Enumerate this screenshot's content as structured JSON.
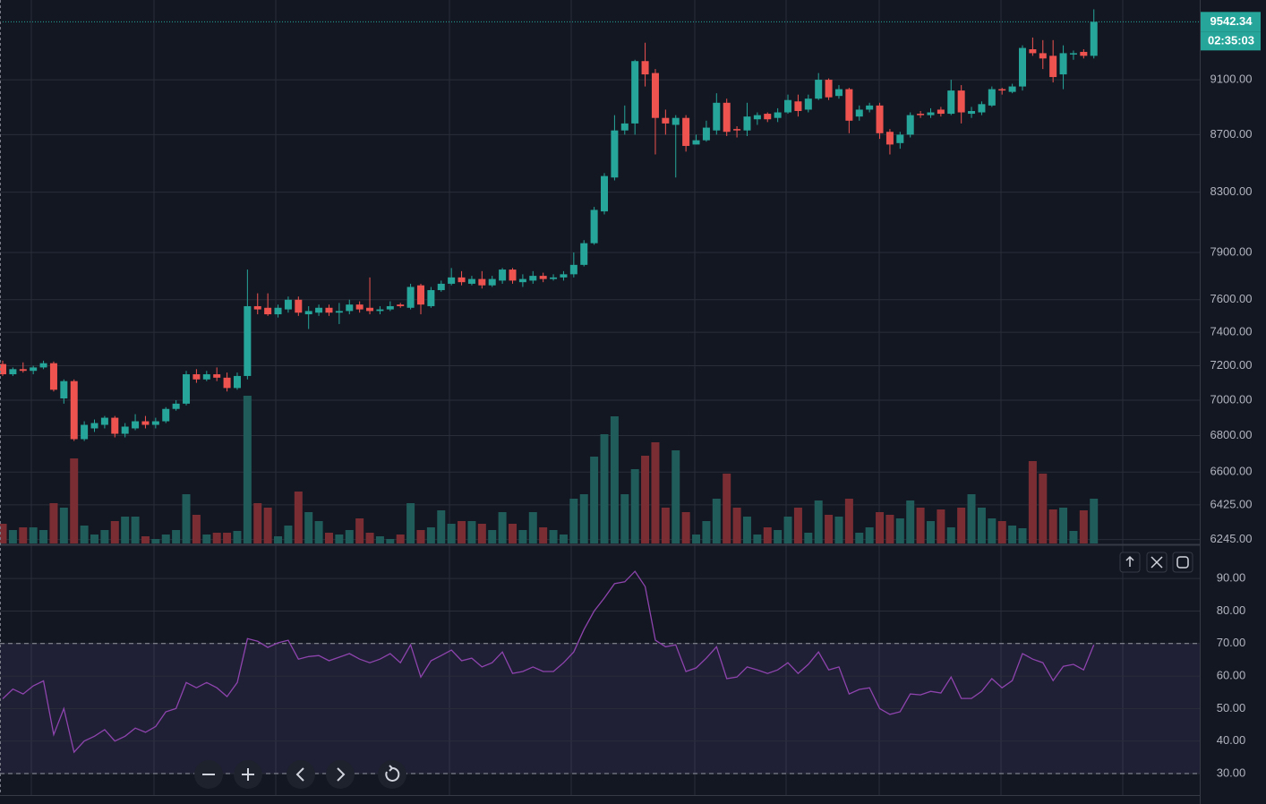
{
  "chart_data": [
    {
      "type": "candlestick",
      "log_scale": true,
      "grid": true,
      "up_color": "#26a69a",
      "down_color": "#ef5350",
      "volume_up_color": "#1f5c5a",
      "volume_down_color": "#7a2e33",
      "ylim": [
        6225,
        9714
      ],
      "yticks": [
        {
          "value": 6245,
          "label": "6245.00"
        },
        {
          "value": 6425,
          "label": "6425.00"
        },
        {
          "value": 6600,
          "label": "6600.00"
        },
        {
          "value": 6800,
          "label": "6800.00"
        },
        {
          "value": 7000,
          "label": "7000.00"
        },
        {
          "value": 7200,
          "label": "7200.00"
        },
        {
          "value": 7400,
          "label": "7400.00"
        },
        {
          "value": 7600,
          "label": "7600.00"
        },
        {
          "value": 7900,
          "label": "7900.00"
        },
        {
          "value": 8300,
          "label": "8300.00"
        },
        {
          "value": 8700,
          "label": "8700.00"
        },
        {
          "value": 9100,
          "label": "9100.00"
        }
      ],
      "last_price": 9542.34,
      "countdown": "02:35:03",
      "open": [
        7210,
        7150,
        7180,
        7170,
        7190,
        7215,
        7010,
        7110,
        6780,
        6840,
        6860,
        6900,
        6810,
        6840,
        6880,
        6860,
        6880,
        6950,
        6980,
        7150,
        7120,
        7150,
        7130,
        7070,
        7140,
        7560,
        7550,
        7510,
        7540,
        7600,
        7510,
        7520,
        7550,
        7520,
        7530,
        7570,
        7550,
        7530,
        7540,
        7570,
        7550,
        7690,
        7560,
        7660,
        7700,
        7740,
        7700,
        7730,
        7690,
        7720,
        7790,
        7710,
        7720,
        7750,
        7730,
        7740,
        7760,
        7820,
        7960,
        8170,
        8400,
        8730,
        8780,
        9240,
        9150,
        8820,
        8770,
        8820,
        8630,
        8660,
        8730,
        8930,
        8740,
        8730,
        8810,
        8850,
        8820,
        8860,
        8940,
        8880,
        8960,
        9100,
        8980,
        9030,
        8830,
        8880,
        8910,
        8720,
        8640,
        8700,
        8850,
        8840,
        8880,
        8850,
        9020,
        8850,
        8860,
        8910,
        9030,
        9010,
        9050,
        9330,
        9300,
        9280,
        9140,
        9290,
        9310,
        9280
      ],
      "high": [
        7230,
        7190,
        7220,
        7200,
        7230,
        7225,
        7120,
        7120,
        6880,
        6890,
        6910,
        6910,
        6870,
        6920,
        6910,
        6900,
        6960,
        7000,
        7170,
        7180,
        7170,
        7190,
        7160,
        7160,
        7790,
        7640,
        7640,
        7570,
        7620,
        7620,
        7560,
        7570,
        7570,
        7580,
        7600,
        7590,
        7740,
        7560,
        7590,
        7580,
        7700,
        7700,
        7680,
        7720,
        7800,
        7780,
        7750,
        7780,
        7750,
        7800,
        7800,
        7760,
        7780,
        7770,
        7760,
        7780,
        7900,
        7980,
        8200,
        8430,
        8840,
        8910,
        9250,
        9380,
        9180,
        8880,
        8840,
        8840,
        8700,
        8800,
        9000,
        8960,
        8760,
        8930,
        8860,
        8860,
        8890,
        8990,
        8990,
        8990,
        9150,
        9110,
        9060,
        9040,
        8910,
        8930,
        8930,
        8740,
        8720,
        8860,
        8870,
        8890,
        8900,
        9100,
        9060,
        8900,
        8940,
        9050,
        9040,
        9070,
        9360,
        9420,
        9400,
        9400,
        9360,
        9320,
        9330,
        9640
      ],
      "low": [
        7140,
        7140,
        7160,
        7150,
        7180,
        7050,
        6980,
        6770,
        6770,
        6820,
        6840,
        6790,
        6790,
        6830,
        6840,
        6840,
        6870,
        6940,
        6970,
        7100,
        7110,
        7110,
        7050,
        7060,
        7120,
        7510,
        7500,
        7490,
        7520,
        7500,
        7420,
        7500,
        7500,
        7450,
        7510,
        7520,
        7510,
        7510,
        7530,
        7550,
        7540,
        7510,
        7550,
        7650,
        7690,
        7690,
        7690,
        7670,
        7680,
        7700,
        7700,
        7680,
        7700,
        7710,
        7720,
        7720,
        7740,
        7810,
        7950,
        8150,
        8380,
        8700,
        8700,
        9050,
        8560,
        8700,
        8400,
        8580,
        8630,
        8650,
        8700,
        8690,
        8680,
        8690,
        8770,
        8790,
        8790,
        8850,
        8830,
        8860,
        8950,
        8950,
        8960,
        8710,
        8800,
        8860,
        8670,
        8560,
        8600,
        8680,
        8820,
        8820,
        8830,
        8840,
        8780,
        8820,
        8840,
        8900,
        8990,
        9000,
        9020,
        9280,
        9180,
        9080,
        9030,
        9250,
        9260,
        9260
      ],
      "close": [
        7150,
        7180,
        7170,
        7190,
        7215,
        7060,
        7110,
        6780,
        6860,
        6870,
        6900,
        6810,
        6850,
        6880,
        6860,
        6880,
        6950,
        6980,
        7150,
        7120,
        7150,
        7130,
        7070,
        7140,
        7560,
        7540,
        7510,
        7550,
        7600,
        7520,
        7530,
        7550,
        7520,
        7530,
        7570,
        7540,
        7530,
        7540,
        7560,
        7560,
        7680,
        7570,
        7660,
        7700,
        7740,
        7710,
        7730,
        7690,
        7730,
        7790,
        7720,
        7730,
        7750,
        7730,
        7740,
        7760,
        7820,
        7960,
        8180,
        8410,
        8730,
        8780,
        9240,
        9140,
        8820,
        8780,
        8820,
        8620,
        8660,
        8750,
        8930,
        8720,
        8730,
        8830,
        8840,
        8810,
        8860,
        8950,
        8870,
        8960,
        9100,
        8970,
        9030,
        8800,
        8880,
        8910,
        8710,
        8630,
        8700,
        8840,
        8840,
        8860,
        8850,
        9020,
        8860,
        8870,
        8920,
        9030,
        9020,
        9050,
        9340,
        9300,
        9260,
        9120,
        9300,
        9300,
        9280,
        9542.34
      ],
      "vlim": [
        0,
        200
      ],
      "volume": [
        22,
        15,
        18,
        18,
        15,
        45,
        40,
        95,
        20,
        10,
        15,
        25,
        30,
        30,
        8,
        5,
        10,
        15,
        55,
        32,
        10,
        12,
        12,
        14,
        165,
        45,
        40,
        8,
        20,
        58,
        35,
        25,
        12,
        10,
        15,
        28,
        12,
        8,
        5,
        10,
        45,
        15,
        18,
        37,
        22,
        25,
        25,
        22,
        15,
        35,
        22,
        15,
        35,
        18,
        15,
        10,
        50,
        55,
        97,
        122,
        142,
        55,
        83,
        98,
        113,
        40,
        104,
        35,
        10,
        25,
        50,
        78,
        40,
        30,
        10,
        18,
        15,
        30,
        40,
        12,
        48,
        32,
        30,
        50,
        12,
        18,
        35,
        32,
        28,
        48,
        40,
        25,
        38,
        18,
        40,
        55,
        40,
        28,
        25,
        20,
        17,
        92,
        78,
        38,
        40,
        14,
        37,
        50
      ]
    },
    {
      "type": "line",
      "color": "#8e44ad",
      "band_color": "rgba(126,87,194,0.12)",
      "band": [
        30,
        70
      ],
      "grid": true,
      "ylim": [
        23.4,
        99.4
      ],
      "yticks": [
        {
          "value": 30,
          "label": "30.00"
        },
        {
          "value": 40,
          "label": "40.00"
        },
        {
          "value": 50,
          "label": "50.00"
        },
        {
          "value": 60,
          "label": "60.00"
        },
        {
          "value": 70,
          "label": "70.00"
        },
        {
          "value": 80,
          "label": "80.00"
        },
        {
          "value": 90,
          "label": "90.00"
        }
      ],
      "values": [
        53,
        56,
        54.5,
        57,
        58.5,
        42,
        50,
        36.6,
        40,
        41.5,
        43.5,
        40,
        41.5,
        44,
        42.7,
        44.5,
        49,
        50,
        58,
        56.4,
        58,
        56.4,
        53.7,
        58,
        71.5,
        70.7,
        68.8,
        70.2,
        71,
        65.2,
        66,
        66.3,
        64.7,
        65.8,
        66.9,
        65.2,
        64.1,
        65.2,
        66.9,
        64.1,
        69.6,
        59.7,
        64.7,
        66.3,
        68,
        64.7,
        65.5,
        62.8,
        64.1,
        67.4,
        60.8,
        61.4,
        62.8,
        61.4,
        61.4,
        64.1,
        67.4,
        74.3,
        80,
        84,
        88.4,
        89,
        92.2,
        87.5,
        71,
        69,
        69.6,
        61.4,
        62.5,
        65.5,
        69,
        59.2,
        59.7,
        62.8,
        61.9,
        60.8,
        61.9,
        64.1,
        60.8,
        63.6,
        67.4,
        61.9,
        62.8,
        54.5,
        55.9,
        56.4,
        50,
        48.2,
        49,
        54.5,
        54.2,
        55.3,
        54.8,
        59.7,
        53.1,
        53.1,
        55.3,
        59.2,
        56.4,
        58.6,
        66.9,
        65.2,
        64.1,
        58.6,
        63,
        63.6,
        61.9,
        69.6
      ]
    }
  ]
}
